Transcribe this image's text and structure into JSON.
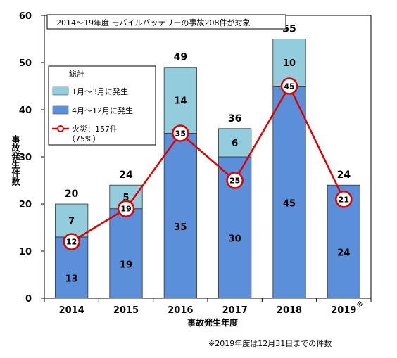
{
  "chart_data": {
    "type": "bar",
    "caption": "2014～19年度 モバイルバッテリーの事故208件が対象",
    "categories": [
      "2014",
      "2015",
      "2016",
      "2017",
      "2018",
      "2019"
    ],
    "category_marks": [
      "",
      "",
      "",
      "",
      "",
      "※"
    ],
    "series": [
      {
        "name": "4月～12月に発生",
        "values": [
          13,
          19,
          35,
          30,
          45,
          24
        ],
        "color": "#5b8fd9"
      },
      {
        "name": "1月～3月に発生",
        "values": [
          7,
          5,
          14,
          6,
          10,
          null
        ],
        "color": "#93cddd"
      },
      {
        "name": "火災：157件",
        "type": "line",
        "values": [
          12,
          19,
          35,
          25,
          45,
          21
        ],
        "color": "#e00000"
      }
    ],
    "totals": [
      20,
      24,
      49,
      36,
      55,
      24
    ],
    "legend": {
      "title": "総計",
      "items": [
        "1月～3月に発生",
        "4月～12月に発生",
        "火災：157件"
      ],
      "fire_share": "（75%）"
    },
    "xlabel": "事故発生年度",
    "ylabel": "事故発生件数",
    "ylim": [
      0,
      60
    ],
    "yticks": [
      0,
      10,
      20,
      30,
      40,
      50,
      60
    ],
    "footnote": "※2019年度は12月31日までの件数"
  }
}
